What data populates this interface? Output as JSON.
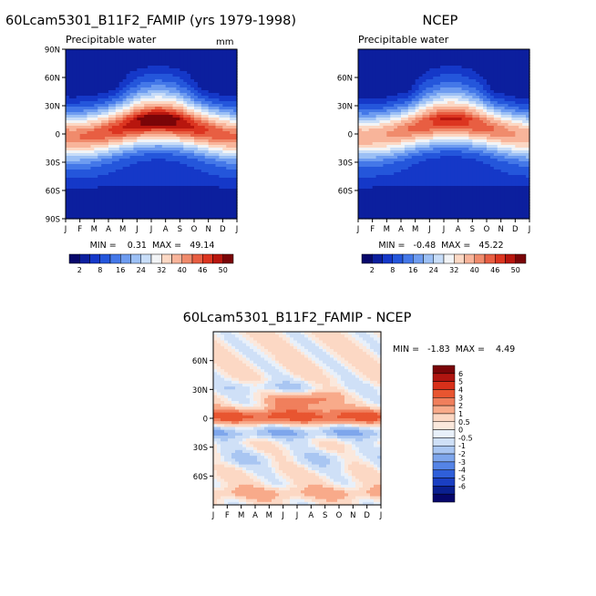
{
  "chart_data": [
    {
      "type": "heatmap",
      "panel_title": "60Lcam5301_B11F2_FAMIP (yrs 1979-1998)",
      "variable_label": "Precipitable water",
      "units_label": "mm",
      "x_tick_labels": [
        "J",
        "F",
        "M",
        "A",
        "M",
        "J",
        "J",
        "A",
        "S",
        "O",
        "N",
        "D",
        "J"
      ],
      "y_tick_labels": [
        "90N",
        "60N",
        "30N",
        "0",
        "30S",
        "60S",
        "90S"
      ],
      "ylim": [
        -90,
        90
      ],
      "stats_text": "MIN =    0.31  MAX =   49.14",
      "min": 0.31,
      "max": 49.14,
      "colorbar_labels": [
        "2",
        "8",
        "16",
        "24",
        "32",
        "40",
        "46",
        "50"
      ]
    },
    {
      "type": "heatmap",
      "panel_title": "NCEP",
      "variable_label": "Precipitable water",
      "x_tick_labels": [
        "J",
        "F",
        "M",
        "A",
        "M",
        "J",
        "J",
        "A",
        "S",
        "O",
        "N",
        "D",
        "J"
      ],
      "y_tick_labels": [
        "60N",
        "30N",
        "0",
        "30S",
        "60S"
      ],
      "ylim": [
        -90,
        90
      ],
      "stats_text": "MIN =   -0.48  MAX =   45.22",
      "min": -0.48,
      "max": 45.22,
      "colorbar_labels": [
        "2",
        "8",
        "16",
        "24",
        "32",
        "40",
        "46",
        "50"
      ]
    },
    {
      "type": "heatmap",
      "panel_title": "60Lcam5301_B11F2_FAMIP - NCEP",
      "x_tick_labels": [
        "J",
        "F",
        "M",
        "A",
        "M",
        "J",
        "J",
        "A",
        "S",
        "O",
        "N",
        "D",
        "J"
      ],
      "y_tick_labels": [
        "60N",
        "30N",
        "0",
        "30S",
        "60S"
      ],
      "ylim": [
        -90,
        90
      ],
      "stats_text": "MIN =   -1.83  MAX =    4.49",
      "min": -1.83,
      "max": 4.49,
      "colorbar_labels": [
        "6",
        "5",
        "4",
        "3",
        "2",
        "1",
        "0.5",
        "0",
        "-0.5",
        "-1",
        "-2",
        "-3",
        "-4",
        "-5",
        "-6"
      ]
    }
  ],
  "colors": {
    "field_scale": [
      "#08086b",
      "#0c1f9e",
      "#1538c8",
      "#2456db",
      "#4478e8",
      "#6e9cf0",
      "#9cc0f5",
      "#c8ddf8",
      "#f2f4f6",
      "#fcd8c4",
      "#f8b49a",
      "#f08b6c",
      "#e85e42",
      "#dc3520",
      "#b8160e",
      "#7a0508"
    ],
    "diff_scale": [
      "#7a0508",
      "#b01510",
      "#d8301a",
      "#e85530",
      "#f07f5c",
      "#f8aa8a",
      "#fcd8c4",
      "#fbe8dc",
      "#e8f0fa",
      "#cfe0f7",
      "#a9c6f2",
      "#7ea6ec",
      "#5584e6",
      "#2f5fd9",
      "#1a3fc2",
      "#0a1f8f",
      "#06066a"
    ]
  }
}
